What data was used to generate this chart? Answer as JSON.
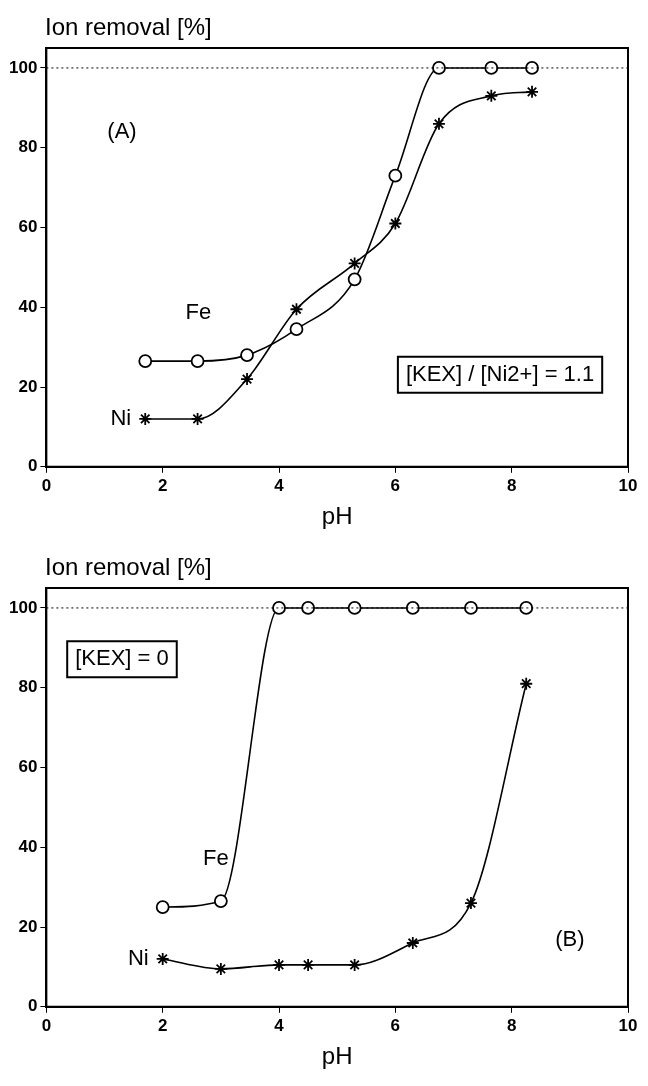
{
  "chart_data": [
    {
      "type": "line",
      "ylabel": "Ion removal [%]",
      "xlabel": "pH",
      "xlim": [
        0,
        10
      ],
      "xticks": [
        0,
        2,
        4,
        6,
        8,
        10
      ],
      "ylim": [
        0,
        105
      ],
      "yticks": [
        0,
        20,
        40,
        60,
        80,
        100
      ],
      "grid": false,
      "legend": false,
      "line_style": "solid",
      "series": [
        {
          "name": "Fe",
          "color": "#000000",
          "marker": "circle",
          "x": [
            1.7,
            2.6,
            3.45,
            4.3,
            5.3,
            6.0,
            6.75,
            7.65,
            8.35
          ],
          "values": [
            26.5,
            26.5,
            28,
            34.5,
            47,
            73,
            100,
            100,
            100
          ]
        },
        {
          "name": "Ni",
          "color": "#000000",
          "marker": "cross",
          "x": [
            1.7,
            2.6,
            3.45,
            4.3,
            5.3,
            6.0,
            6.75,
            7.65,
            8.35
          ],
          "values": [
            12,
            12,
            22,
            39.5,
            51,
            61,
            86,
            93,
            94
          ]
        }
      ],
      "ref_lines": [
        {
          "axis": "y",
          "value": 100,
          "line_style": "dotted",
          "color": "#000000"
        }
      ],
      "annotations": [
        "(A)",
        "[KEX] / [Ni2+] = 1.1"
      ]
    },
    {
      "type": "line",
      "ylabel": "Ion removal [%]",
      "xlabel": "pH",
      "xlim": [
        0,
        10
      ],
      "xticks": [
        0,
        2,
        4,
        6,
        8,
        10
      ],
      "ylim": [
        0,
        105
      ],
      "yticks": [
        0,
        20,
        40,
        60,
        80,
        100
      ],
      "grid": false,
      "legend": false,
      "line_style": "solid",
      "series": [
        {
          "name": "Fe",
          "color": "#000000",
          "marker": "circle",
          "x": [
            2,
            3,
            4,
            4.5,
            5.3,
            6.3,
            7.3,
            8.25
          ],
          "values": [
            25,
            26.5,
            100,
            100,
            100,
            100,
            100,
            100
          ]
        },
        {
          "name": "Ni",
          "color": "#000000",
          "marker": "cross",
          "x": [
            2,
            3,
            4,
            4.5,
            5.3,
            6.3,
            7.3,
            8.25
          ],
          "values": [
            12,
            9.5,
            10.5,
            10.5,
            10.5,
            16,
            26,
            81
          ]
        }
      ],
      "ref_lines": [
        {
          "axis": "y",
          "value": 100,
          "line_style": "dotted",
          "color": "#000000"
        }
      ],
      "annotations": [
        "[KEX] = 0",
        "(B)"
      ]
    }
  ]
}
